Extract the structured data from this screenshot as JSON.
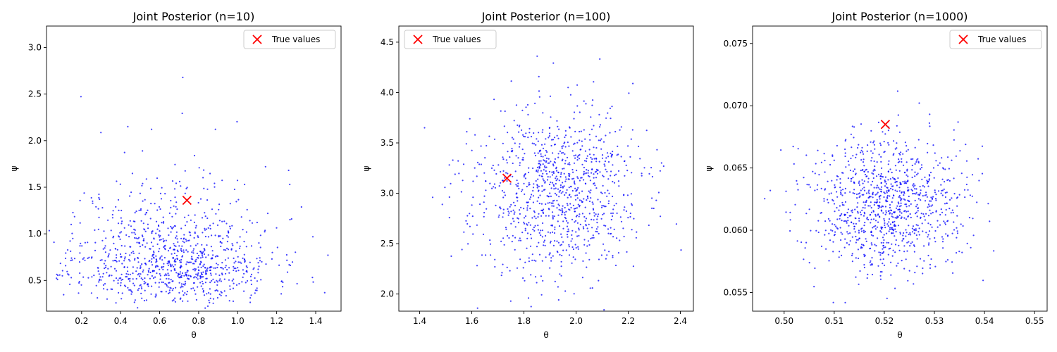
{
  "chart_data": [
    {
      "type": "scatter",
      "title": "Joint Posterior (n=10)",
      "xlabel": "θ",
      "ylabel": "ψ",
      "xlim": [
        0.02,
        1.53
      ],
      "ylim": [
        0.17,
        3.23
      ],
      "xticks": [
        "0.2",
        "0.4",
        "0.6",
        "0.8",
        "1.0",
        "1.2",
        "1.4"
      ],
      "xtick_values": [
        0.2,
        0.4,
        0.6,
        0.8,
        1.0,
        1.2,
        1.4
      ],
      "yticks": [
        "0.5",
        "1.0",
        "1.5",
        "2.0",
        "2.5",
        "3.0"
      ],
      "ytick_values": [
        0.5,
        1.0,
        1.5,
        2.0,
        2.5,
        3.0
      ],
      "legend": {
        "label": "True values",
        "position": "upper right"
      },
      "true_value": {
        "x": 0.74,
        "y": 1.36
      },
      "samples": {
        "count": 1000,
        "x_mean": 0.66,
        "x_sd": 0.26,
        "y_dist": "lognormal",
        "y_median": 0.73,
        "y_logsd": 0.42,
        "seed": 11
      },
      "series": [
        {
          "name": "True values",
          "color": "#ff0000",
          "marker": "x"
        }
      ],
      "point_color": "#0000ff"
    },
    {
      "type": "scatter",
      "title": "Joint Posterior (n=100)",
      "xlabel": "θ",
      "ylabel": "ψ",
      "xlim": [
        1.32,
        2.45
      ],
      "ylim": [
        1.83,
        4.66
      ],
      "xticks": [
        "1.4",
        "1.6",
        "1.8",
        "2.0",
        "2.2",
        "2.4"
      ],
      "xtick_values": [
        1.4,
        1.6,
        1.8,
        2.0,
        2.2,
        2.4
      ],
      "yticks": [
        "2.0",
        "2.5",
        "3.0",
        "3.5",
        "4.0",
        "4.5"
      ],
      "ytick_values": [
        2.0,
        2.5,
        3.0,
        3.5,
        4.0,
        4.5
      ],
      "legend": {
        "label": "True values",
        "position": "upper left"
      },
      "true_value": {
        "x": 1.735,
        "y": 3.15
      },
      "samples": {
        "count": 1000,
        "x_mean": 1.92,
        "x_sd": 0.16,
        "y_dist": "normal",
        "y_mean": 3.0,
        "y_sd": 0.42,
        "seed": 23
      },
      "series": [
        {
          "name": "True values",
          "color": "#ff0000",
          "marker": "x"
        }
      ],
      "point_color": "#0000ff"
    },
    {
      "type": "scatter",
      "title": "Joint Posterior (n=1000)",
      "xlabel": "θ",
      "ylabel": "ψ",
      "xlim": [
        0.4937,
        0.5525
      ],
      "ylim": [
        0.0535,
        0.0764
      ],
      "xticks": [
        "0.50",
        "0.51",
        "0.52",
        "0.53",
        "0.54",
        "0.55"
      ],
      "xtick_values": [
        0.5,
        0.51,
        0.52,
        0.53,
        0.54,
        0.55
      ],
      "yticks": [
        "0.055",
        "0.060",
        "0.065",
        "0.070",
        "0.075"
      ],
      "ytick_values": [
        0.055,
        0.06,
        0.065,
        0.07,
        0.075
      ],
      "legend": {
        "label": "True values",
        "position": "upper right"
      },
      "true_value": {
        "x": 0.5202,
        "y": 0.0685
      },
      "samples": {
        "count": 1000,
        "x_mean": 0.5205,
        "x_sd": 0.0075,
        "y_dist": "normal",
        "y_mean": 0.0621,
        "y_sd": 0.0027,
        "seed": 37
      },
      "series": [
        {
          "name": "True values",
          "color": "#ff0000",
          "marker": "x"
        }
      ],
      "point_color": "#0000ff"
    }
  ]
}
